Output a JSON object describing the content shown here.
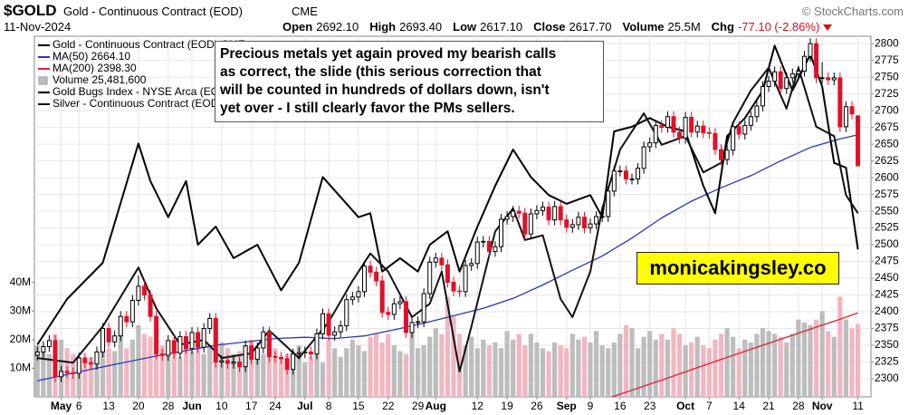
{
  "header": {
    "symbol": "$GOLD",
    "name": "Gold - Continuous Contract (EOD)",
    "exchange": "CME",
    "date": "11-Nov-2024",
    "source": "© StockCharts.com",
    "stats": [
      {
        "label": "Open",
        "value": "2692.10"
      },
      {
        "label": "High",
        "value": "2693.40"
      },
      {
        "label": "Low",
        "value": "2617.10"
      },
      {
        "label": "Close",
        "value": "2617.70"
      },
      {
        "label": "Volume",
        "value": "25.5M"
      },
      {
        "label": "Chg",
        "value": "-77.10 (-2.86%)"
      }
    ]
  },
  "annotation": {
    "lines": [
      "Precious metals yet again proved my bearish calls",
      "as correct, the slide (this serious correction that",
      "will be counted in hundreds of dollars down, isn't",
      "yet over - I still clearly favor the PMs sellers."
    ]
  },
  "watermark": "monicakingsley.co",
  "chart_data": {
    "type": "candlestick",
    "xlim": [
      -0.5,
      140.2
    ],
    "ylim": [
      2273,
      2811
    ],
    "yticks": [
      2300,
      2325,
      2350,
      2375,
      2400,
      2425,
      2450,
      2475,
      2500,
      2525,
      2550,
      2575,
      2600,
      2625,
      2650,
      2675,
      2700,
      2725,
      2750,
      2775,
      2800
    ],
    "xticks": [
      {
        "value": 4,
        "label": "May"
      },
      {
        "value": 7,
        "label": "6"
      },
      {
        "value": 12,
        "label": "13"
      },
      {
        "value": 17,
        "label": "20"
      },
      {
        "value": 22,
        "label": "28"
      },
      {
        "value": 26,
        "label": "Jun"
      },
      {
        "value": 31,
        "label": "10"
      },
      {
        "value": 36,
        "label": "17"
      },
      {
        "value": 40,
        "label": "24"
      },
      {
        "value": 45,
        "label": "Jul"
      },
      {
        "value": 49,
        "label": "8"
      },
      {
        "value": 54,
        "label": "15"
      },
      {
        "value": 59,
        "label": "22"
      },
      {
        "value": 64,
        "label": "29"
      },
      {
        "value": 67,
        "label": "Aug"
      },
      {
        "value": 74,
        "label": "12"
      },
      {
        "value": 79,
        "label": "19"
      },
      {
        "value": 84,
        "label": "26"
      },
      {
        "value": 89,
        "label": "Sep"
      },
      {
        "value": 93,
        "label": "9"
      },
      {
        "value": 98,
        "label": "16"
      },
      {
        "value": 103,
        "label": "23"
      },
      {
        "value": 109,
        "label": "Oct"
      },
      {
        "value": 113,
        "label": "7"
      },
      {
        "value": 118,
        "label": "14"
      },
      {
        "value": 123,
        "label": "21"
      },
      {
        "value": 128,
        "label": "28"
      },
      {
        "value": 132,
        "label": "Nov"
      },
      {
        "value": 138,
        "label": "11"
      }
    ],
    "grid": true,
    "price": {
      "name": "Gold - Continuous Contract (EOD) CME",
      "color": "#000000",
      "up_color": "#ffffff",
      "down_color": "#e0102a",
      "open": [
        2335,
        2340,
        2348,
        2357,
        2303,
        2311,
        2309,
        2308,
        2331,
        2324,
        2322,
        2340,
        2375,
        2355,
        2364,
        2393,
        2385,
        2417,
        2438,
        2425,
        2393,
        2337,
        2335,
        2357,
        2338,
        2363,
        2345,
        2369,
        2347,
        2375,
        2390,
        2325,
        2327,
        2323,
        2325,
        2318,
        2349,
        2329,
        2346,
        2370,
        2333,
        2332,
        2330,
        2314,
        2337,
        2339,
        2340,
        2337,
        2367,
        2397,
        2365,
        2370,
        2379,
        2418,
        2422,
        2430,
        2468,
        2459,
        2446,
        2399,
        2396,
        2412,
        2415,
        2369,
        2384,
        2385,
        2427,
        2474,
        2480,
        2470,
        2444,
        2431,
        2430,
        2469,
        2472,
        2504,
        2505,
        2490,
        2497,
        2538,
        2542,
        2550,
        2547,
        2516,
        2546,
        2551,
        2556,
        2537,
        2557,
        2537,
        2526,
        2530,
        2541,
        2525,
        2531,
        2542,
        2542,
        2580,
        2610,
        2610,
        2598,
        2598,
        2614,
        2646,
        2652,
        2678,
        2675,
        2691,
        2668,
        2659,
        2690,
        2668,
        2677,
        2667,
        2666,
        2642,
        2627,
        2641,
        2676,
        2665,
        2678,
        2691,
        2707,
        2736,
        2744,
        2758,
        2733,
        2749,
        2755,
        2759,
        2781,
        2800,
        2749,
        2749,
        2746,
        2749,
        2676,
        2706,
        2692.1
      ],
      "high": [
        2348,
        2356,
        2365,
        2365,
        2319,
        2319,
        2317,
        2339,
        2339,
        2332,
        2348,
        2383,
        2383,
        2372,
        2401,
        2401,
        2425,
        2454,
        2446,
        2433,
        2401,
        2345,
        2365,
        2365,
        2371,
        2371,
        2377,
        2377,
        2383,
        2398,
        2398,
        2335,
        2335,
        2333,
        2333,
        2357,
        2357,
        2354,
        2378,
        2378,
        2341,
        2340,
        2338,
        2345,
        2347,
        2348,
        2348,
        2375,
        2405,
        2405,
        2378,
        2387,
        2426,
        2430,
        2438,
        2476,
        2476,
        2467,
        2454,
        2407,
        2420,
        2423,
        2423,
        2392,
        2393,
        2435,
        2482,
        2488,
        2488,
        2478,
        2452,
        2439,
        2477,
        2480,
        2512,
        2513,
        2513,
        2505,
        2546,
        2550,
        2558,
        2558,
        2555,
        2554,
        2559,
        2564,
        2564,
        2565,
        2565,
        2545,
        2538,
        2549,
        2549,
        2539,
        2550,
        2550,
        2588,
        2618,
        2618,
        2618,
        2606,
        2622,
        2654,
        2660,
        2686,
        2686,
        2699,
        2699,
        2676,
        2698,
        2698,
        2685,
        2685,
        2675,
        2674,
        2650,
        2649,
        2684,
        2684,
        2686,
        2699,
        2715,
        2744,
        2752,
        2766,
        2766,
        2757,
        2763,
        2767,
        2789,
        2808,
        2808,
        2772,
        2757,
        2757,
        2757,
        2714,
        2714,
        2693.4
      ],
      "low": [
        2327,
        2332,
        2340,
        2295,
        2295,
        2301,
        2300,
        2300,
        2316,
        2314,
        2314,
        2332,
        2347,
        2347,
        2356,
        2377,
        2377,
        2409,
        2417,
        2385,
        2329,
        2327,
        2327,
        2330,
        2330,
        2337,
        2337,
        2339,
        2339,
        2367,
        2317,
        2317,
        2315,
        2315,
        2310,
        2310,
        2321,
        2321,
        2338,
        2325,
        2324,
        2322,
        2306,
        2306,
        2329,
        2331,
        2329,
        2329,
        2359,
        2357,
        2357,
        2362,
        2371,
        2410,
        2414,
        2422,
        2451,
        2438,
        2391,
        2388,
        2388,
        2404,
        2361,
        2361,
        2376,
        2377,
        2419,
        2466,
        2462,
        2436,
        2423,
        2422,
        2422,
        2461,
        2464,
        2496,
        2482,
        2482,
        2489,
        2530,
        2534,
        2539,
        2508,
        2508,
        2538,
        2543,
        2529,
        2529,
        2529,
        2518,
        2518,
        2522,
        2517,
        2517,
        2523,
        2534,
        2534,
        2572,
        2602,
        2590,
        2590,
        2590,
        2606,
        2638,
        2644,
        2667,
        2667,
        2660,
        2651,
        2651,
        2660,
        2660,
        2659,
        2658,
        2634,
        2619,
        2619,
        2633,
        2657,
        2657,
        2670,
        2683,
        2699,
        2728,
        2736,
        2725,
        2725,
        2741,
        2747,
        2751,
        2773,
        2741,
        2741,
        2738,
        2738,
        2668,
        2668,
        2687,
        2617.1
      ],
      "close": [
        2340,
        2348,
        2357,
        2303,
        2311,
        2309,
        2308,
        2331,
        2324,
        2322,
        2340,
        2375,
        2355,
        2364,
        2393,
        2385,
        2417,
        2438,
        2425,
        2393,
        2337,
        2335,
        2357,
        2338,
        2363,
        2345,
        2369,
        2347,
        2375,
        2390,
        2325,
        2327,
        2323,
        2325,
        2318,
        2349,
        2329,
        2346,
        2370,
        2333,
        2332,
        2330,
        2314,
        2337,
        2339,
        2340,
        2337,
        2367,
        2397,
        2365,
        2370,
        2379,
        2418,
        2422,
        2430,
        2468,
        2459,
        2446,
        2399,
        2396,
        2412,
        2415,
        2369,
        2384,
        2385,
        2427,
        2474,
        2480,
        2470,
        2444,
        2431,
        2430,
        2469,
        2472,
        2504,
        2505,
        2490,
        2497,
        2538,
        2542,
        2550,
        2547,
        2516,
        2546,
        2551,
        2556,
        2537,
        2557,
        2537,
        2526,
        2530,
        2541,
        2525,
        2531,
        2542,
        2542,
        2580,
        2610,
        2610,
        2598,
        2598,
        2614,
        2646,
        2652,
        2678,
        2675,
        2691,
        2668,
        2659,
        2690,
        2668,
        2677,
        2667,
        2666,
        2642,
        2627,
        2641,
        2676,
        2665,
        2678,
        2691,
        2707,
        2736,
        2744,
        2758,
        2733,
        2749,
        2755,
        2759,
        2781,
        2800,
        2749,
        2749,
        2746,
        2749,
        2676,
        2706,
        2695,
        2617.7
      ]
    },
    "volume": {
      "name": "Volume 25,481,600",
      "color": "#9a9a9a",
      "up_color": "#bdbdbd",
      "down_color": "#f2b6c0",
      "ylim": [
        0,
        126
      ],
      "yticks": [
        {
          "value": 10,
          "label": "10M"
        },
        {
          "value": 20,
          "label": "20M"
        },
        {
          "value": 30,
          "label": "30M"
        },
        {
          "value": 40,
          "label": "40M"
        }
      ],
      "values": [
        18,
        16,
        15,
        22,
        20,
        17,
        15,
        14,
        13,
        14,
        15,
        22,
        17,
        16,
        22,
        17,
        20,
        25,
        22,
        21,
        27,
        18,
        15,
        17,
        14,
        18,
        16,
        17,
        15,
        18,
        26,
        19,
        17,
        15,
        16,
        18,
        20,
        16,
        15,
        22,
        17,
        14,
        15,
        16,
        18,
        12,
        14,
        16,
        12,
        20,
        17,
        14,
        17,
        20,
        18,
        16,
        21,
        22,
        19,
        22,
        18,
        16,
        15,
        23,
        17,
        18,
        21,
        24,
        22,
        35,
        28,
        22,
        18,
        21,
        17,
        20,
        18,
        19,
        17,
        23,
        20,
        22,
        18,
        22,
        19,
        17,
        16,
        19,
        18,
        17,
        22,
        20,
        21,
        19,
        23,
        18,
        17,
        19,
        22,
        25,
        24,
        17,
        21,
        23,
        20,
        22,
        20,
        24,
        22,
        18,
        19,
        21,
        18,
        17,
        20,
        22,
        24,
        21,
        17,
        20,
        19,
        22,
        24,
        23,
        22,
        21,
        19,
        22,
        27,
        26,
        25,
        27,
        30,
        23,
        21,
        35,
        27,
        24,
        25.48
      ]
    },
    "overlays": [
      {
        "name": "MA(50) 2664.10",
        "color": "#2a38b0",
        "width": 1.3,
        "x": [
          0,
          10,
          20,
          30,
          40,
          45,
          50,
          55,
          60,
          65,
          70,
          75,
          80,
          85,
          90,
          95,
          100,
          105,
          110,
          115,
          120,
          125,
          130,
          135,
          138
        ],
        "values": [
          2297,
          2316,
          2334,
          2350,
          2360,
          2362,
          2360,
          2364,
          2373,
          2383,
          2394,
          2405,
          2420,
          2440,
          2462,
          2483,
          2510,
          2540,
          2565,
          2585,
          2603,
          2625,
          2645,
          2658,
          2664.1
        ]
      },
      {
        "name": "MA(200) 2398.30",
        "color": "#e0203c",
        "width": 1.3,
        "x": [
          95,
          105,
          115,
          125,
          130,
          135,
          138
        ],
        "values": [
          2268,
          2298,
          2329,
          2359,
          2374,
          2389,
          2398.3
        ]
      },
      {
        "name": "Gold Bugs Index - NYSE Arca (EOD)",
        "color": "#000000",
        "width": 2,
        "x": [
          0,
          5,
          11,
          17,
          19,
          22,
          25,
          27,
          30,
          33,
          37,
          41,
          44,
          48,
          50,
          54,
          56,
          58,
          61,
          64,
          66,
          69,
          71,
          74,
          77,
          80,
          83,
          86,
          89,
          93,
          95,
          97,
          100,
          103,
          106,
          109,
          112,
          114,
          116,
          119,
          122,
          124,
          127,
          130,
          132,
          134,
          136,
          138
        ],
        "values": [
          2351,
          2419,
          2473,
          2651,
          2595,
          2541,
          2595,
          2500,
          2527,
          2480,
          2500,
          2432,
          2473,
          2601,
          2581,
          2541,
          2547,
          2460,
          2480,
          2460,
          2500,
          2520,
          2460,
          2527,
          2588,
          2642,
          2601,
          2574,
          2561,
          2574,
          2541,
          2669,
          2676,
          2689,
          2676,
          2669,
          2588,
          2547,
          2662,
          2689,
          2730,
          2797,
          2730,
          2784,
          2736,
          2622,
          2615,
          2493
        ]
      },
      {
        "name": "Silver - Continuous Contract (EOD) CME",
        "color": "#111111",
        "width": 2,
        "x": [
          0,
          6,
          11,
          17,
          20,
          24,
          28,
          31,
          36,
          39,
          44,
          49,
          53,
          56,
          59,
          63,
          66,
          68,
          71,
          73,
          77,
          80,
          82,
          85,
          88,
          90,
          93,
          95,
          98,
          102,
          105,
          109,
          112,
          115,
          117,
          120,
          123,
          126,
          128,
          131,
          134,
          136,
          138
        ],
        "values": [
          2331,
          2324,
          2378,
          2466,
          2405,
          2351,
          2358,
          2331,
          2338,
          2372,
          2331,
          2385,
          2446,
          2487,
          2460,
          2392,
          2412,
          2460,
          2311,
          2378,
          2520,
          2554,
          2507,
          2514,
          2419,
          2392,
          2460,
          2554,
          2642,
          2696,
          2649,
          2662,
          2608,
          2622,
          2682,
          2730,
          2764,
          2703,
          2764,
          2676,
          2662,
          2574,
          2547
        ]
      }
    ]
  }
}
